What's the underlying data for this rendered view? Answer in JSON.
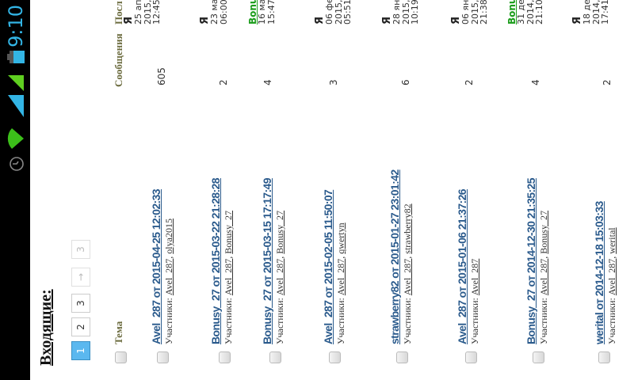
{
  "status_bar": {
    "time": "9:10",
    "icons": [
      "alarm-icon",
      "wifi-icon",
      "signal-icon",
      "signal-icon",
      "battery-icon"
    ],
    "accent": "#33b5e5"
  },
  "page_title": "Входящие:",
  "pagination": [
    {
      "label": "1",
      "state": "active"
    },
    {
      "label": "2",
      "state": "normal"
    },
    {
      "label": "3",
      "state": "normal"
    },
    {
      "label": "→",
      "state": "disabled"
    },
    {
      "label": "3",
      "state": "disabled"
    }
  ],
  "table": {
    "headers": {
      "topic": "Тема",
      "messages": "Сообщения",
      "last": "Посл"
    },
    "participants_label": "Участники:",
    "rows": [
      {
        "title": "Avel_287 от 2015-04-25 12:02:33",
        "participants": [
          "Avel_287",
          "olya2015"
        ],
        "count": "605",
        "last_author": "Я",
        "last_author_link": false,
        "last_lines": [
          "25 ап",
          "2015,",
          "12:45"
        ]
      },
      {
        "title": "Bonusy_27 от 2015-03-22 21:28:28",
        "participants": [
          "Avel_287",
          "Bonusy_27"
        ],
        "count": "2",
        "last_author": "Я",
        "last_author_link": false,
        "last_lines": [
          "23 ма",
          "06:00"
        ]
      },
      {
        "title": "Bonusy_27 от 2015-03-15 17:17:49",
        "participants": [
          "Avel_287",
          "Bonusy_27"
        ],
        "count": "4",
        "last_author": "Bonu",
        "last_author_link": true,
        "last_lines": [
          "16 ма",
          "15:47"
        ]
      },
      {
        "title": "Avel_287 от 2015-02-05 11:50:07",
        "participants": [
          "Avel_287",
          "qwertyn"
        ],
        "count": "3",
        "last_author": "Я",
        "last_author_link": false,
        "last_lines": [
          "06 фе",
          "2015,",
          "05:51"
        ]
      },
      {
        "title": "strawberry82 от 2015-01-27 23:01:42",
        "participants": [
          "Avel_287",
          "strawberry82"
        ],
        "count": "6",
        "last_author": "Я",
        "last_author_link": false,
        "last_lines": [
          "28 ян",
          "2015,",
          "10:19"
        ]
      },
      {
        "title": "Avel_287 от 2015-01-06 21:37:26",
        "participants": [
          "Avel_287"
        ],
        "count": "2",
        "last_author": "Я",
        "last_author_link": false,
        "last_lines": [
          "06 ян",
          "2015,",
          "21:38"
        ]
      },
      {
        "title": "Bonusy_27 от 2014-12-30 21:35:25",
        "participants": [
          "Avel_287",
          "Bonusy_27"
        ],
        "count": "4",
        "last_author": "Bonu",
        "last_author_link": true,
        "last_lines": [
          "31 де",
          "2014,",
          "21:10"
        ]
      },
      {
        "title": "werital от 2014-12-18 15:03:33",
        "participants": [
          "Avel_287",
          "werital"
        ],
        "count": "2",
        "last_author": "Я",
        "last_author_link": false,
        "last_lines": [
          "18 де",
          "2014,",
          "17:41"
        ]
      }
    ]
  },
  "colors": {
    "link": "#2a5a8c",
    "author_link": "#1a9c1a",
    "header": "#6b6b3e",
    "active_page": "#5bb8ef"
  }
}
